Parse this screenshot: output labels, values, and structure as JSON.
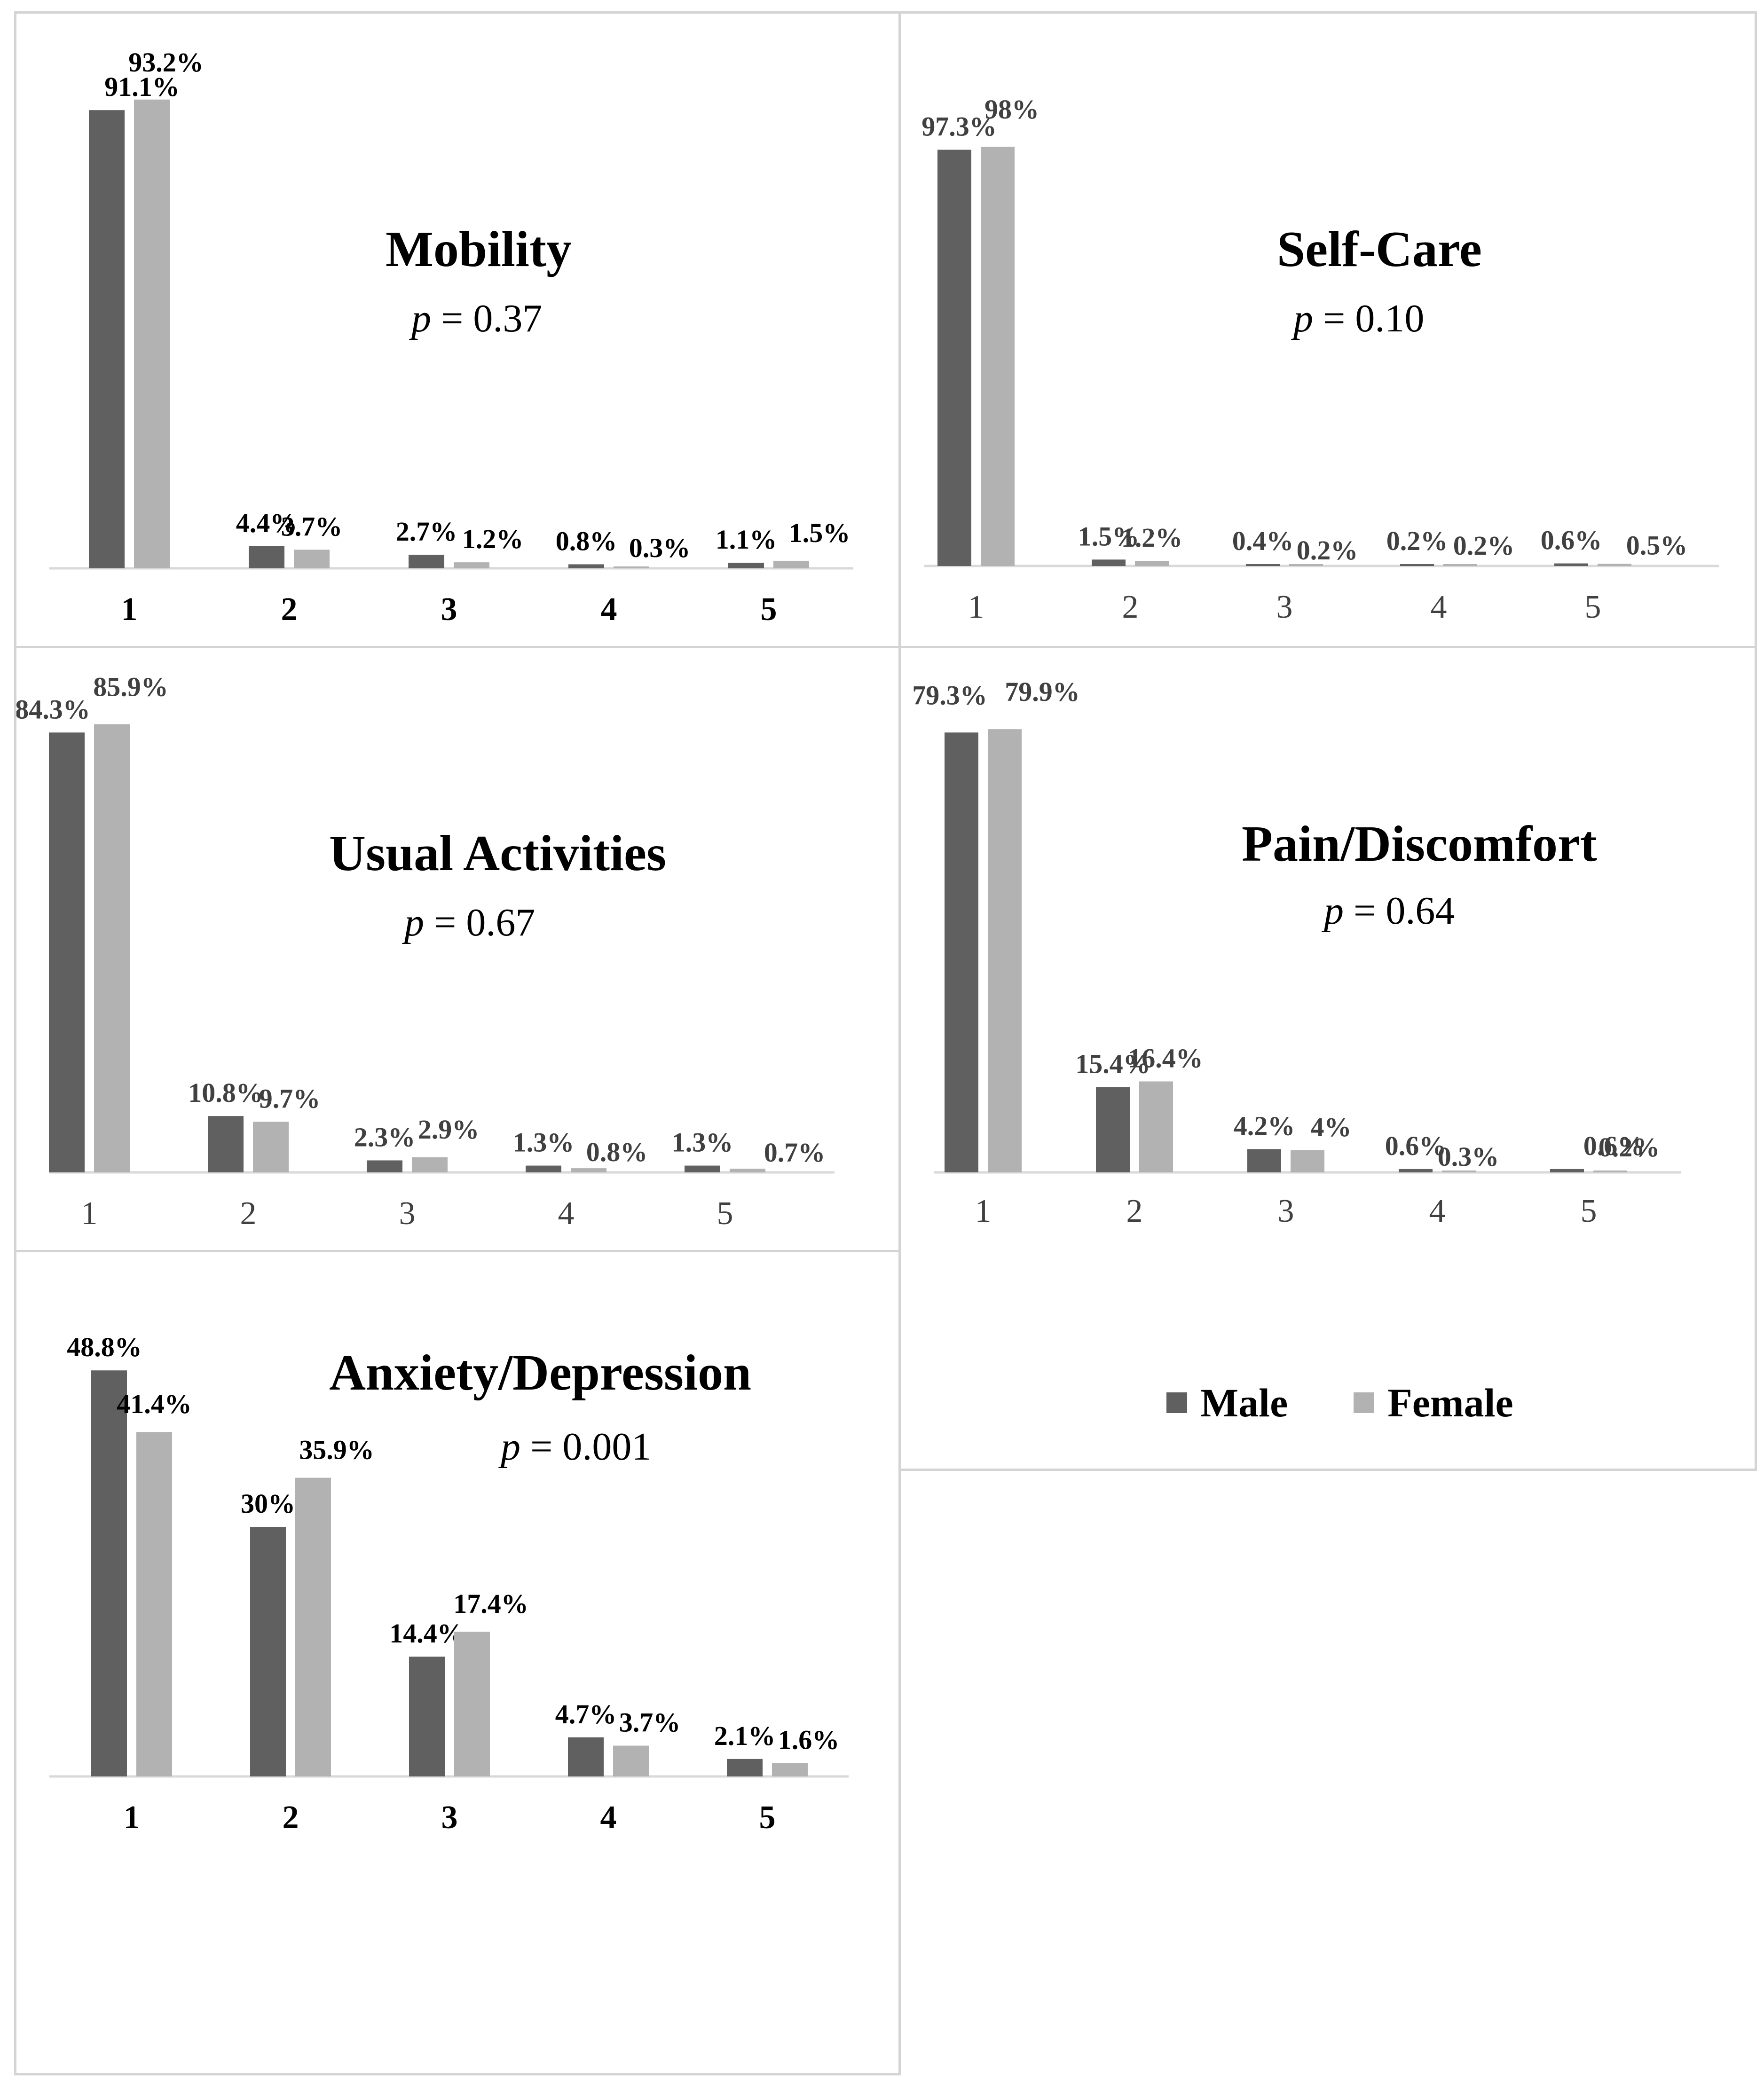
{
  "colors": {
    "male": "#606060",
    "female": "#b2b2b2",
    "axis": "#d9d9d9",
    "border": "#d4d4d4"
  },
  "legend": {
    "male": "Male",
    "female": "Female"
  },
  "chart_data": [
    {
      "id": "mobility",
      "type": "bar",
      "title": "Mobility",
      "p_label": "p",
      "p_value": " = 0.37",
      "categories": [
        "1",
        "2",
        "3",
        "4",
        "5"
      ],
      "series": [
        {
          "name": "Male",
          "values": [
            91.1,
            4.4,
            2.7,
            0.8,
            1.1
          ]
        },
        {
          "name": "Female",
          "values": [
            93.2,
            3.7,
            1.2,
            0.3,
            1.5
          ]
        }
      ],
      "labels": [
        [
          "91.1%",
          "4.4%",
          "2.7%",
          "0.8%",
          "1.1%"
        ],
        [
          "93.2%",
          "3.7%",
          "1.2%",
          "0.3%",
          "1.5%"
        ]
      ],
      "ylim": [
        0,
        100
      ]
    },
    {
      "id": "selfcare",
      "type": "bar",
      "title": "Self-Care",
      "p_label": "p",
      "p_value": " = 0.10",
      "categories": [
        "1",
        "2",
        "3",
        "4",
        "5"
      ],
      "series": [
        {
          "name": "Male",
          "values": [
            97.3,
            1.5,
            0.4,
            0.2,
            0.6
          ]
        },
        {
          "name": "Female",
          "values": [
            98,
            1.2,
            0.2,
            0.2,
            0.5
          ]
        }
      ],
      "labels": [
        [
          "97.3%",
          "1.5%",
          "0.4%",
          "0.2%",
          "0.6%"
        ],
        [
          "98%",
          "1.2%",
          "0.2%",
          "0.2%",
          "0.5%"
        ]
      ],
      "ylim": [
        0,
        100
      ]
    },
    {
      "id": "usual",
      "type": "bar",
      "title": "Usual Activities",
      "p_label": "p",
      "p_value": " = 0.67",
      "categories": [
        "1",
        "2",
        "3",
        "4",
        "5"
      ],
      "series": [
        {
          "name": "Male",
          "values": [
            84.3,
            10.8,
            2.3,
            1.3,
            1.3
          ]
        },
        {
          "name": "Female",
          "values": [
            85.9,
            9.7,
            2.9,
            0.8,
            0.7
          ]
        }
      ],
      "labels": [
        [
          "84.3%",
          "10.8%",
          "2.3%",
          "1.3%",
          "1.3%"
        ],
        [
          "85.9%",
          "9.7%",
          "2.9%",
          "0.8%",
          "0.7%"
        ]
      ],
      "ylim": [
        0,
        100
      ]
    },
    {
      "id": "pain",
      "type": "bar",
      "title": "Pain/Discomfort",
      "p_label": "p",
      "p_value": " = 0.64",
      "categories": [
        "1",
        "2",
        "3",
        "4",
        "5"
      ],
      "series": [
        {
          "name": "Male",
          "values": [
            79.3,
            15.4,
            4.2,
            0.6,
            0.6
          ]
        },
        {
          "name": "Female",
          "values": [
            79.9,
            16.4,
            4,
            0.3,
            0.2
          ]
        }
      ],
      "labels": [
        [
          "79.3%",
          "15.4%",
          "4.2%",
          "0.6%",
          "0.6%"
        ],
        [
          "79.9%",
          "16.4%",
          "4%",
          "0.3%",
          "0.2%"
        ]
      ],
      "ylim": [
        0,
        100
      ]
    },
    {
      "id": "anxiety",
      "type": "bar",
      "title": "Anxiety/Depression",
      "p_label": "p",
      "p_value": " = 0.001",
      "categories": [
        "1",
        "2",
        "3",
        "4",
        "5"
      ],
      "series": [
        {
          "name": "Male",
          "values": [
            48.8,
            30,
            14.4,
            4.7,
            2.1
          ]
        },
        {
          "name": "Female",
          "values": [
            41.4,
            35.9,
            17.4,
            3.7,
            1.6
          ]
        }
      ],
      "labels": [
        [
          "48.8%",
          "30%",
          "14.4%",
          "4.7%",
          "2.1%"
        ],
        [
          "41.4%",
          "35.9%",
          "17.4%",
          "3.7%",
          "1.6%"
        ]
      ],
      "ylim": [
        0,
        60
      ]
    }
  ]
}
